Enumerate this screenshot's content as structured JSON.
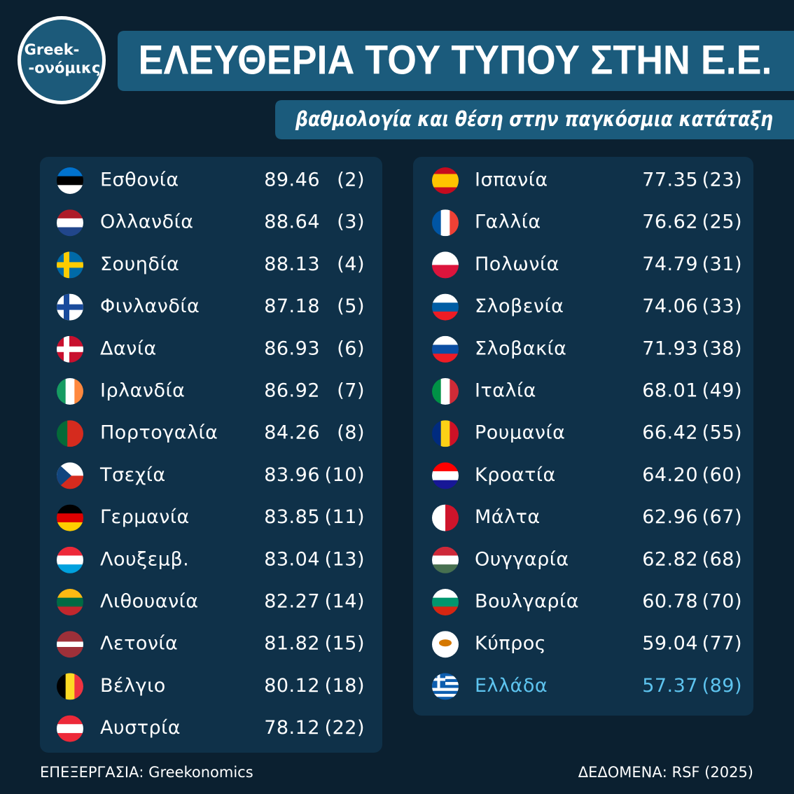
{
  "logo": {
    "line1": "Greek-",
    "line2": "-ονόμικς"
  },
  "title": "ΕΛΕΥΘΕΡΙΑ ΤΟΥ ΤΥΠΟΥ ΣΤΗΝ Ε.Ε.",
  "subtitle": "βαθμολογία και θέση στην παγκόσμια κατάταξη",
  "left_table": {
    "rows": [
      [
        "Εσθονία",
        "89.46",
        "(2)"
      ],
      [
        "Ολλανδία",
        "88.64",
        "(3)"
      ],
      [
        "Σουηδία",
        "88.13",
        "(4)"
      ],
      [
        "Φινλανδία",
        "87.18",
        "(5)"
      ],
      [
        "Δανία",
        "86.93",
        "(6)"
      ],
      [
        "Ιρλανδία",
        "86.92",
        "(7)"
      ],
      [
        "Πορτογαλία",
        "84.26",
        "(8)"
      ],
      [
        "Τσεχία",
        "83.96",
        "(10)"
      ],
      [
        "Γερμανία",
        "83.85",
        "(11)"
      ],
      [
        "Λουξεμβ.",
        "83.04",
        "(13)"
      ],
      [
        "Λιθουανία",
        "82.27",
        "(14)"
      ],
      [
        "Λετονία",
        "81.82",
        "(15)"
      ],
      [
        "Βέλγιο",
        "80.12",
        "(18)"
      ],
      [
        "Αυστρία",
        "78.12",
        "(22)"
      ]
    ]
  },
  "right_table": {
    "rows": [
      [
        "Ισπανία",
        "77.35",
        "(23)"
      ],
      [
        "Γαλλία",
        "76.62",
        "(25)"
      ],
      [
        "Πολωνία",
        "74.79",
        "(31)"
      ],
      [
        "Σλοβενία",
        "74.06",
        "(33)"
      ],
      [
        "Σλοβακία",
        "71.93",
        "(38)"
      ],
      [
        "Ιταλία",
        "68.01",
        "(49)"
      ],
      [
        "Ρουμανία",
        "66.42",
        "(55)"
      ],
      [
        "Κροατία",
        "64.20",
        "(60)"
      ],
      [
        "Μάλτα",
        "62.96",
        "(67)"
      ],
      [
        "Ουγγαρία",
        "62.82",
        "(68)"
      ],
      [
        "Βουλγαρία",
        "60.78",
        "(70)"
      ],
      [
        "Κύπρος",
        "59.04",
        "(77)"
      ],
      [
        "Ελλάδα",
        "57.37",
        "(89)"
      ]
    ]
  },
  "footer": {
    "left": "ΕΠΕΞΕΡΓΑΣΙΑ: Greekonomics",
    "right": "ΔΕΔΟΜΕΝΑ: RSF (2025)"
  }
}
